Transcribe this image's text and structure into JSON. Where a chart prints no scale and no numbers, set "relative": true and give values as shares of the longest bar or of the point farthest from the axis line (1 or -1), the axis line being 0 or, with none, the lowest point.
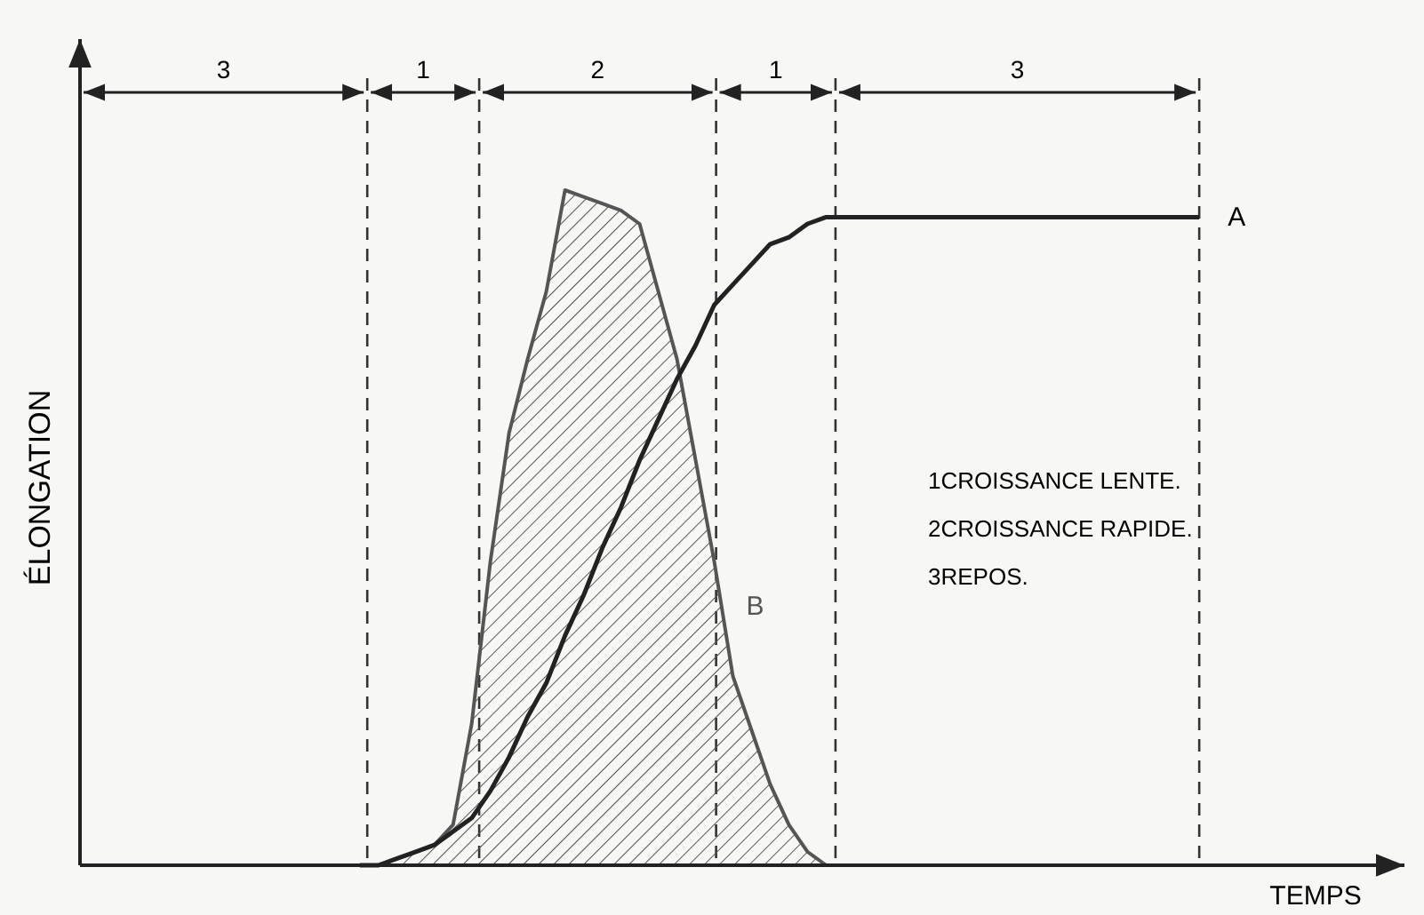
{
  "chart_data": {
    "type": "line",
    "relative": true,
    "xlabel": "TEMPS",
    "ylabel": "ÉLONGATION",
    "categories": [
      null,
      null,
      null,
      null,
      null,
      null,
      null,
      null,
      null,
      null,
      null,
      null,
      null,
      null,
      null,
      null,
      null,
      null,
      null,
      null,
      null,
      null,
      null,
      null,
      null,
      null,
      null,
      null,
      null,
      null,
      null,
      null,
      null,
      null,
      null,
      null,
      null,
      null,
      null,
      null,
      null,
      null,
      null,
      null,
      null,
      null,
      null,
      null,
      null,
      null,
      null,
      null,
      null,
      null,
      null,
      null,
      null,
      null,
      null,
      null,
      null,
      null,
      null,
      null,
      null,
      null,
      null,
      null,
      null,
      null,
      null,
      null
    ],
    "series": [
      {
        "name": "A",
        "color": "#222222",
        "values": [
          null,
          null,
          null,
          null,
          null,
          null,
          null,
          null,
          null,
          null,
          null,
          null,
          null,
          null,
          null,
          0,
          0,
          0.01,
          0.02,
          0.03,
          0.05,
          0.07,
          0.11,
          0.16,
          0.22,
          0.27,
          0.34,
          0.4,
          0.47,
          0.53,
          0.6,
          0.66,
          0.72,
          0.77,
          0.83,
          0.86,
          0.89,
          0.92,
          0.93,
          0.95,
          0.96,
          0.96,
          0.96,
          0.96,
          0.96,
          0.96,
          0.96,
          0.96,
          0.96,
          0.96,
          0.96,
          0.96,
          0.96,
          0.96,
          0.96,
          0.96,
          0.96,
          0.96,
          0.96,
          0.96,
          0.96,
          null,
          null,
          null,
          null,
          null,
          null,
          null,
          null,
          null,
          null,
          null
        ]
      },
      {
        "name": "B",
        "type": "area",
        "color": "#555555",
        "values": [
          null,
          null,
          null,
          null,
          null,
          null,
          null,
          null,
          null,
          null,
          null,
          null,
          null,
          null,
          null,
          0,
          0,
          0.01,
          0.02,
          0.03,
          0.06,
          0.21,
          0.45,
          0.64,
          0.75,
          0.85,
          1,
          0.99,
          0.98,
          0.97,
          0.95,
          0.85,
          0.75,
          0.6,
          0.45,
          0.28,
          0.2,
          0.12,
          0.06,
          0.02,
          0,
          null,
          null,
          null,
          null,
          null,
          null,
          null,
          null,
          null,
          null,
          null,
          null,
          null,
          null,
          null,
          null,
          null,
          null,
          null,
          null,
          null,
          null,
          null,
          null,
          null,
          null,
          null,
          null,
          null,
          null,
          null
        ]
      }
    ],
    "annotations": [
      "3",
      "1",
      "2",
      "1",
      "3",
      "1CROISSANCE LENTE.",
      "2CROISSANCE RAPIDE.",
      "3REPOS."
    ]
  }
}
